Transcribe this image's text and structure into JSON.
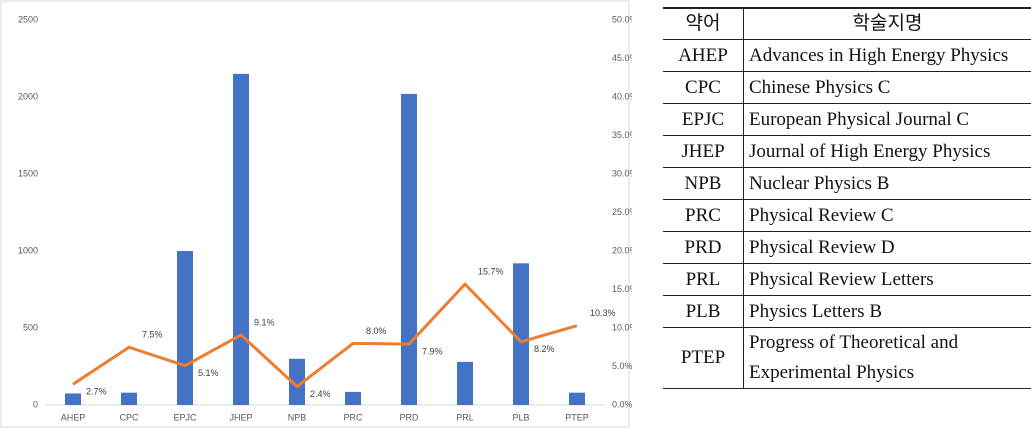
{
  "chart_data": {
    "type": "bar",
    "categories": [
      "AHEP",
      "CPC",
      "EPJC",
      "JHEP",
      "NPB",
      "PRC",
      "PRD",
      "PRL",
      "PLB",
      "PTEP"
    ],
    "series": [
      {
        "type": "bar",
        "color": "#4472c4",
        "values": [
          75,
          80,
          1000,
          2150,
          300,
          85,
          2020,
          280,
          920,
          80
        ]
      },
      {
        "type": "line",
        "axis": "y2",
        "color": "#ed7d31",
        "values": [
          2.7,
          7.5,
          5.1,
          9.1,
          2.4,
          8.0,
          7.9,
          15.7,
          8.2,
          10.3
        ],
        "value_labels": [
          "2.7%",
          "7.5%",
          "5.1%",
          "9.1%",
          "2.4%",
          "8.0%",
          "7.9%",
          "15.7%",
          "8.2%",
          "10.3%"
        ]
      }
    ],
    "ylim": [
      0,
      2500
    ],
    "yticks": [
      0,
      500,
      1000,
      1500,
      2000,
      2500
    ],
    "y2lim": [
      0,
      50
    ],
    "y2ticks": [
      {
        "value": 0,
        "label": "0.0%"
      },
      {
        "value": 5,
        "label": "5.0%"
      },
      {
        "value": 10,
        "label": "10.0%"
      },
      {
        "value": 15,
        "label": "15.0%"
      },
      {
        "value": 20,
        "label": "20.0%"
      },
      {
        "value": 25,
        "label": "25.0%"
      },
      {
        "value": 30,
        "label": "30.0%"
      },
      {
        "value": 35,
        "label": "35.0%"
      },
      {
        "value": 40,
        "label": "40.0%"
      },
      {
        "value": 45,
        "label": "45.0%"
      },
      {
        "value": 50,
        "label": "50.0%"
      }
    ],
    "grid": false
  },
  "table": {
    "header": [
      "약어",
      "학술지명"
    ],
    "rows": [
      [
        "AHEP",
        "Advances in High Energy Physics"
      ],
      [
        "CPC",
        "Chinese Physics C"
      ],
      [
        "EPJC",
        "European Physical Journal C"
      ],
      [
        "JHEP",
        "Journal of High Energy Physics"
      ],
      [
        "NPB",
        "Nuclear Physics B"
      ],
      [
        "PRC",
        "Physical Review C"
      ],
      [
        "PRD",
        "Physical Review D"
      ],
      [
        "PRL",
        "Physical Review Letters"
      ],
      [
        "PLB",
        "Physics Letters B"
      ],
      [
        "PTEP",
        "Progress of Theoretical and Experimental Physics"
      ]
    ]
  }
}
